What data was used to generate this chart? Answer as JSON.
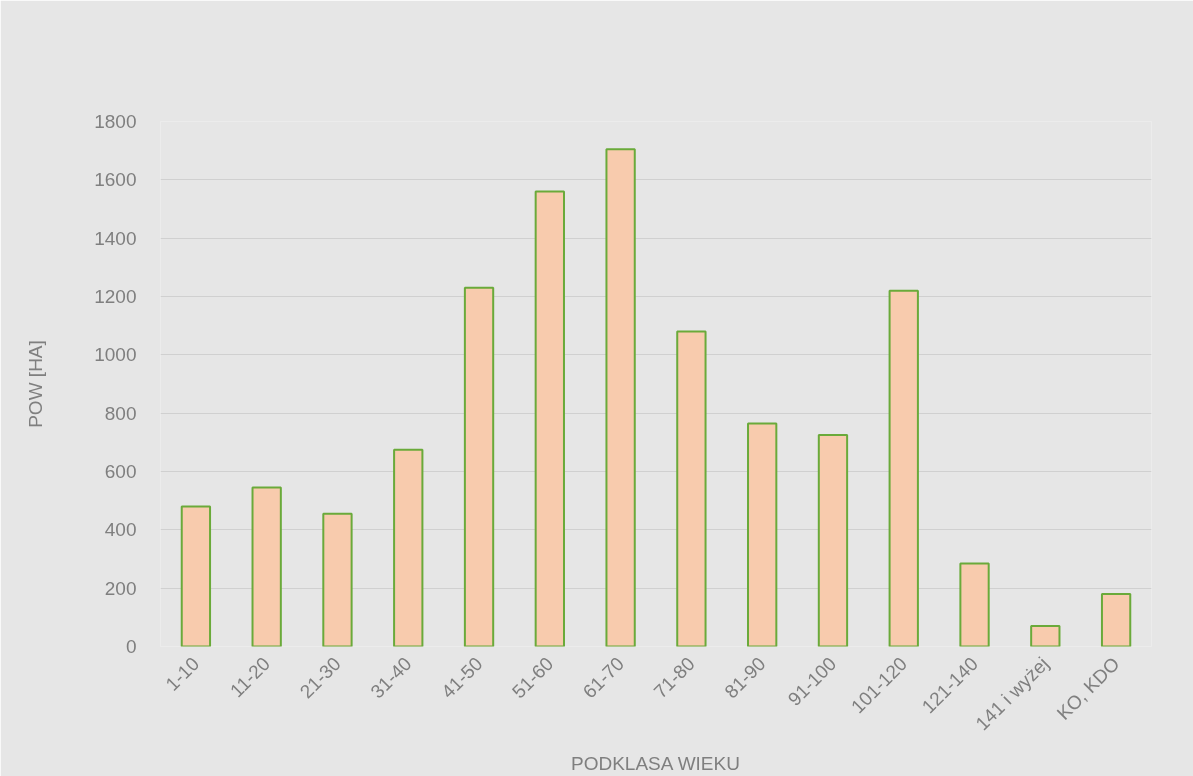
{
  "chart_data": {
    "type": "bar",
    "xlabel": "PODKLASA WIEKU",
    "ylabel": "POW [HA]",
    "categories": [
      "1-10",
      "11-20",
      "21-30",
      "31-40",
      "41-50",
      "51-60",
      "61-70",
      "71-80",
      "81-90",
      "91-100",
      "101-120",
      "121-140",
      "141 i wyżej",
      "KO, KDO"
    ],
    "values": [
      480,
      545,
      455,
      675,
      1230,
      1560,
      1705,
      1080,
      765,
      725,
      1220,
      285,
      70,
      180
    ],
    "color": "#f8cbad",
    "ylim": [
      0,
      1800
    ],
    "yticks": [
      0,
      200,
      400,
      600,
      800,
      1000,
      1200,
      1400,
      1600,
      1800
    ],
    "grid": "y"
  }
}
